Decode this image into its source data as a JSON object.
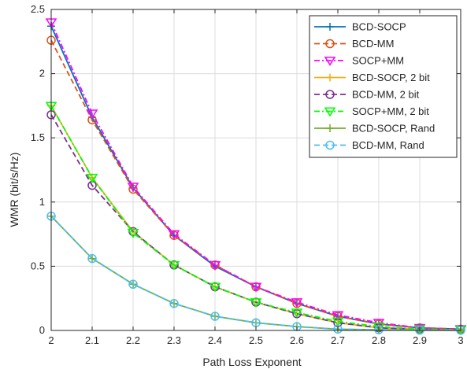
{
  "chart_data": {
    "type": "line",
    "title": "",
    "xlabel": "Path Loss Exponent",
    "ylabel": "WMR (bit/s/Hz)",
    "xlim": [
      2,
      3
    ],
    "ylim": [
      0,
      2.5
    ],
    "xticks": [
      2,
      2.1,
      2.2,
      2.3,
      2.4,
      2.5,
      2.6,
      2.7,
      2.8,
      2.9,
      3
    ],
    "xtick_labels": [
      "2",
      "2.1",
      "2.2",
      "2.3",
      "2.4",
      "2.5",
      "2.6",
      "2.7",
      "2.8",
      "2.9",
      "3"
    ],
    "yticks": [
      0,
      0.5,
      1,
      1.5,
      2,
      2.5
    ],
    "ytick_labels": [
      "0",
      "0.5",
      "1",
      "1.5",
      "2",
      "2.5"
    ],
    "grid": true,
    "legend_position": "top-right",
    "x": [
      2,
      2.1,
      2.2,
      2.3,
      2.4,
      2.5,
      2.6,
      2.7,
      2.8,
      2.9,
      3
    ],
    "series": [
      {
        "name": "BCD-SOCP",
        "color": "#0072BD",
        "dash": "solid",
        "marker": "plus",
        "values": [
          2.37,
          1.66,
          1.11,
          0.74,
          0.5,
          0.34,
          0.21,
          0.11,
          0.05,
          0.02,
          0.01
        ]
      },
      {
        "name": "BCD-MM",
        "color": "#D95319",
        "dash": "dashed",
        "marker": "circle",
        "values": [
          2.26,
          1.64,
          1.1,
          0.74,
          0.51,
          0.34,
          0.21,
          0.11,
          0.05,
          0.02,
          0.01
        ]
      },
      {
        "name": "SOCP+MM",
        "color": "#FF00FF",
        "dash": "dashdot",
        "marker": "triangle-down",
        "values": [
          2.4,
          1.69,
          1.12,
          0.75,
          0.51,
          0.34,
          0.22,
          0.12,
          0.06,
          0.02,
          0.01
        ]
      },
      {
        "name": "BCD-SOCP, 2 bit",
        "color": "#EDB120",
        "dash": "solid",
        "marker": "plus",
        "values": [
          1.75,
          1.19,
          0.77,
          0.51,
          0.34,
          0.22,
          0.13,
          0.06,
          0.02,
          0.01,
          0.005
        ]
      },
      {
        "name": "BCD-MM, 2 bit",
        "color": "#7E2F8E",
        "dash": "dashed",
        "marker": "circle",
        "values": [
          1.68,
          1.13,
          0.77,
          0.51,
          0.34,
          0.22,
          0.13,
          0.06,
          0.02,
          0.01,
          0.005
        ]
      },
      {
        "name": "SOCP+MM, 2 bit",
        "color": "#00FF00",
        "dash": "dashdot",
        "marker": "triangle-down",
        "values": [
          1.75,
          1.19,
          0.76,
          0.51,
          0.34,
          0.22,
          0.14,
          0.07,
          0.03,
          0.01,
          0.005
        ]
      },
      {
        "name": "BCD-SOCP, Rand",
        "color": "#77AC30",
        "dash": "solid",
        "marker": "plus",
        "values": [
          0.89,
          0.56,
          0.36,
          0.21,
          0.11,
          0.06,
          0.03,
          0.01,
          0.005,
          0.002,
          0.001
        ]
      },
      {
        "name": "BCD-MM, Rand",
        "color": "#4DBEEE",
        "dash": "dashed",
        "marker": "circle",
        "values": [
          0.89,
          0.56,
          0.36,
          0.21,
          0.11,
          0.06,
          0.03,
          0.01,
          0.005,
          0.002,
          0.001
        ]
      }
    ]
  }
}
